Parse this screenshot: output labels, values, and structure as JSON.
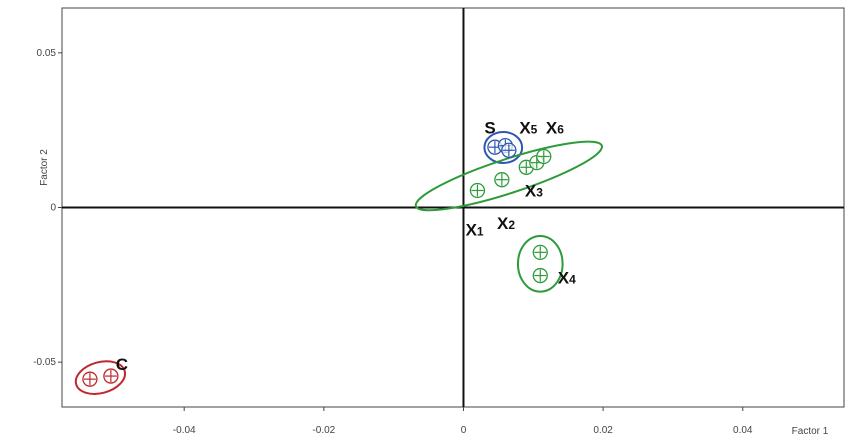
{
  "chart_data": {
    "type": "scatter",
    "title": "",
    "xlabel": "Factor 1",
    "ylabel": "Factor 2",
    "xlim": [
      -0.0575,
      0.0545
    ],
    "ylim": [
      -0.0645,
      0.0645
    ],
    "x_ticks": [
      {
        "value": -0.04,
        "label": "-0.04"
      },
      {
        "value": -0.02,
        "label": "-0.02"
      },
      {
        "value": 0,
        "label": "0"
      },
      {
        "value": 0.02,
        "label": "0.02"
      },
      {
        "value": 0.04,
        "label": "0.04"
      }
    ],
    "y_ticks": [
      {
        "value": 0.05,
        "label": "0.05"
      },
      {
        "value": 0,
        "label": "0"
      },
      {
        "value": -0.05,
        "label": "-0.05"
      }
    ],
    "grid": false,
    "colors": {
      "red": "#c0282d",
      "blue": "#2f56b0",
      "green": "#2e9b3a"
    },
    "points": [
      {
        "x": -0.0535,
        "y": -0.0555,
        "color": "red"
      },
      {
        "x": -0.0505,
        "y": -0.0545,
        "color": "red"
      },
      {
        "x": 0.0045,
        "y": 0.0195,
        "color": "blue"
      },
      {
        "x": 0.006,
        "y": 0.02,
        "color": "blue"
      },
      {
        "x": 0.0065,
        "y": 0.0185,
        "color": "blue"
      },
      {
        "x": 0.002,
        "y": 0.0055,
        "color": "green"
      },
      {
        "x": 0.0055,
        "y": 0.009,
        "color": "green"
      },
      {
        "x": 0.009,
        "y": 0.013,
        "color": "green"
      },
      {
        "x": 0.0105,
        "y": 0.0145,
        "color": "green"
      },
      {
        "x": 0.0115,
        "y": 0.0165,
        "color": "green"
      },
      {
        "x": 0.011,
        "y": -0.0145,
        "color": "green"
      },
      {
        "x": 0.011,
        "y": -0.022,
        "color": "green"
      }
    ],
    "clusters": [
      {
        "label": "C",
        "subscript": "",
        "color": "red",
        "cx": -0.052,
        "cy": -0.055,
        "rx": 0.0036,
        "ry": 0.005,
        "angle": -15,
        "label_x": -0.0498,
        "label_y": -0.0525
      },
      {
        "label": "S",
        "subscript": "",
        "color": "blue",
        "cx": 0.0057,
        "cy": 0.0194,
        "rx": 0.0027,
        "ry": 0.005,
        "angle": 0,
        "label_x": 0.003,
        "label_y": 0.024
      },
      {
        "label": "",
        "subscript": "",
        "color": "green",
        "cx": 0.0065,
        "cy": 0.0102,
        "rx": 0.014,
        "ry": 0.0055,
        "angle": -18,
        "label_x": 0,
        "label_y": 0
      },
      {
        "label": "",
        "subscript": "",
        "color": "green",
        "cx": 0.011,
        "cy": -0.0182,
        "rx": 0.0032,
        "ry": 0.009,
        "angle": 0,
        "label_x": 0,
        "label_y": 0
      }
    ],
    "annotations": [
      {
        "label": "X",
        "subscript": "5",
        "x": 0.008,
        "y": 0.024
      },
      {
        "label": "X",
        "subscript": "6",
        "x": 0.0118,
        "y": 0.024
      },
      {
        "label": "X",
        "subscript": "3",
        "x": 0.0088,
        "y": 0.0035
      },
      {
        "label": "X",
        "subscript": "1",
        "x": 0.0003,
        "y": -0.009
      },
      {
        "label": "X",
        "subscript": "2",
        "x": 0.0048,
        "y": -0.007
      },
      {
        "label": "X",
        "subscript": "4",
        "x": 0.0135,
        "y": -0.0245
      }
    ]
  }
}
